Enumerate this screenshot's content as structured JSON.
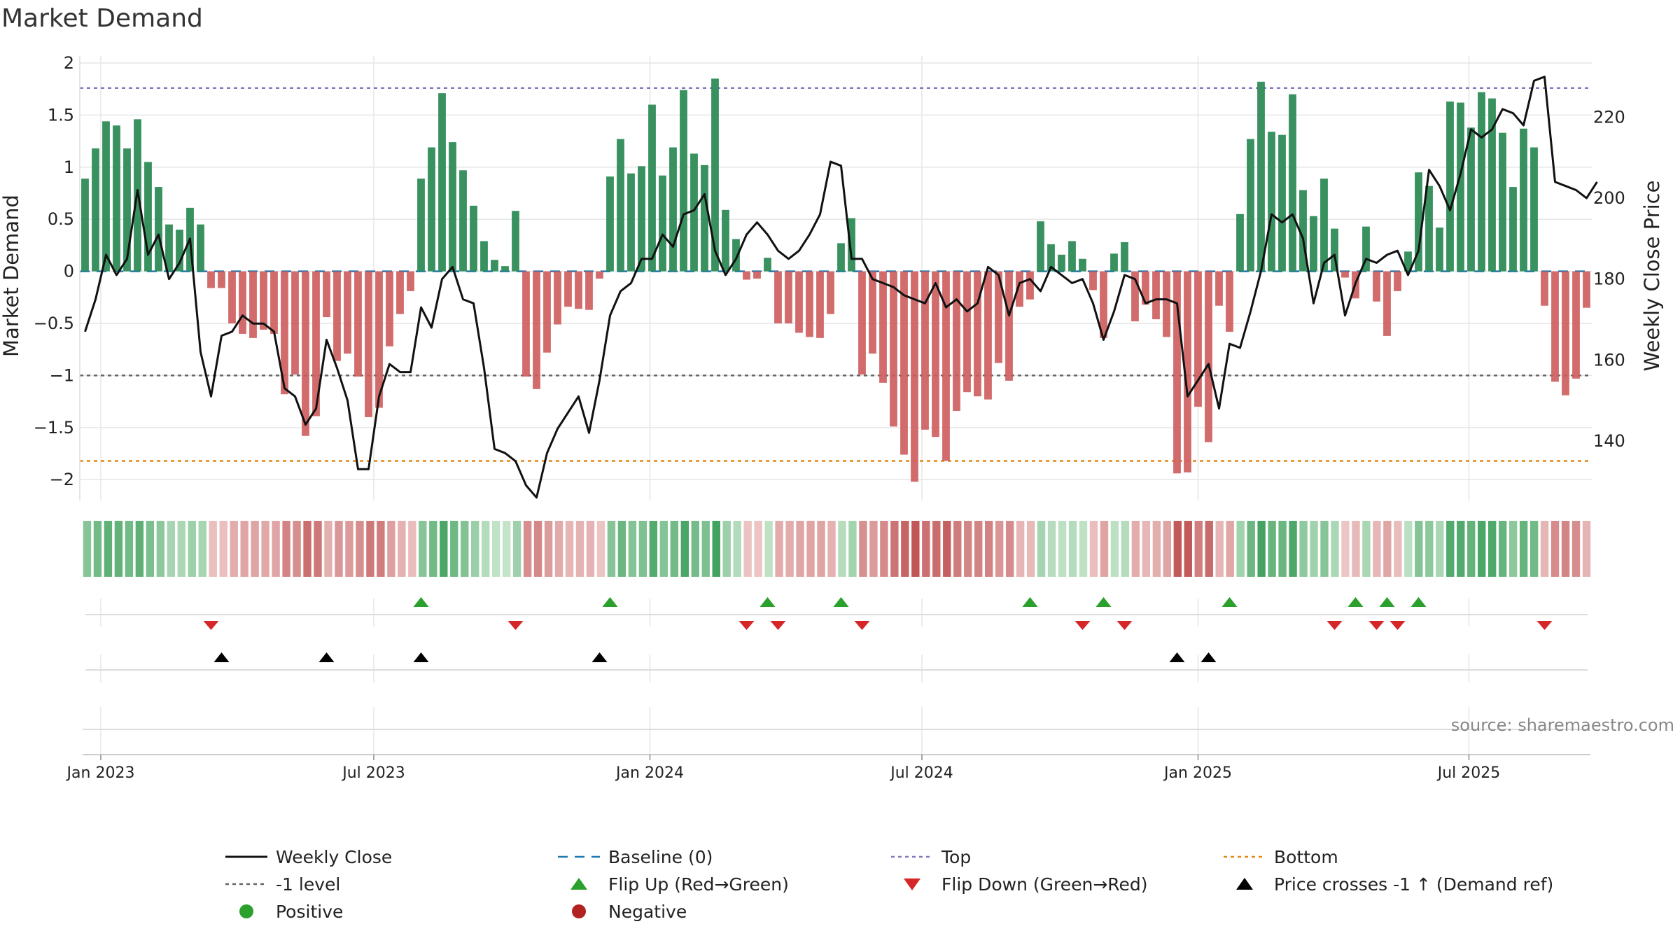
{
  "chart_data": {
    "type": "bar",
    "title": "Market Demand",
    "source": "source: sharemaestro.com",
    "x_ticks": [
      {
        "label": "Jan 2023",
        "week": 1.5
      },
      {
        "label": "Jul 2023",
        "week": 27.5
      },
      {
        "label": "Jan 2024",
        "week": 53.8
      },
      {
        "label": "Jul 2024",
        "week": 79.7
      },
      {
        "label": "Jan 2025",
        "week": 106
      },
      {
        "label": "Jul 2025",
        "week": 131.8
      }
    ],
    "demand_axis": {
      "label": "Market Demand",
      "ylim": [
        -2.2,
        2.0
      ],
      "ticks": [
        {
          "v": 2,
          "label": "2"
        },
        {
          "v": 1.5,
          "label": "1.5"
        },
        {
          "v": 1,
          "label": "1"
        },
        {
          "v": 0.5,
          "label": "0.5"
        },
        {
          "v": 0,
          "label": "0"
        },
        {
          "v": -0.5,
          "label": "−0.5"
        },
        {
          "v": -1,
          "label": "−1"
        },
        {
          "v": -1.5,
          "label": "−1.5"
        },
        {
          "v": -2,
          "label": "−2"
        }
      ]
    },
    "price_axis": {
      "label": "Weekly Close Price",
      "ylim": [
        125.27,
        233.4
      ],
      "ticks": [
        {
          "v": 220,
          "label": "220"
        },
        {
          "v": 200,
          "label": "200"
        },
        {
          "v": 180,
          "label": "180"
        },
        {
          "v": 160,
          "label": "160"
        },
        {
          "v": 140,
          "label": "140"
        }
      ]
    },
    "reference_lines": {
      "top": 1.76,
      "bottom": -1.82,
      "minus_one": -1,
      "baseline": 0
    },
    "demand": [
      0.89,
      1.18,
      1.44,
      1.4,
      1.18,
      1.46,
      1.05,
      0.81,
      0.45,
      0.4,
      0.61,
      0.45,
      -0.16,
      -0.16,
      -0.5,
      -0.6,
      -0.64,
      -0.56,
      -0.6,
      -1.18,
      -0.99,
      -1.58,
      -1.39,
      -0.44,
      -0.86,
      -0.79,
      -1.01,
      -1.4,
      -1.31,
      -0.72,
      -0.41,
      -0.19,
      0.89,
      1.19,
      1.71,
      1.24,
      0.97,
      0.63,
      0.29,
      0.11,
      0.05,
      0.58,
      -1.01,
      -1.13,
      -0.78,
      -0.51,
      -0.34,
      -0.36,
      -0.37,
      -0.07,
      0.91,
      1.27,
      0.94,
      1.01,
      1.6,
      0.92,
      1.19,
      1.74,
      1.13,
      1.02,
      1.85,
      0.59,
      0.31,
      -0.08,
      -0.07,
      0.13,
      -0.5,
      -0.5,
      -0.59,
      -0.63,
      -0.64,
      -0.41,
      0.27,
      0.51,
      -0.99,
      -0.79,
      -1.07,
      -1.49,
      -1.76,
      -2.02,
      -1.52,
      -1.59,
      -1.82,
      -1.34,
      -1.16,
      -1.2,
      -1.23,
      -0.88,
      -1.05,
      -0.34,
      -0.27,
      0.48,
      0.26,
      0.16,
      0.29,
      0.12,
      -0.18,
      -0.64,
      0.17,
      0.28,
      -0.48,
      -0.32,
      -0.46,
      -0.63,
      -1.94,
      -1.93,
      -1.3,
      -1.64,
      -0.33,
      -0.58,
      0.55,
      1.27,
      1.82,
      1.34,
      1.31,
      1.7,
      0.78,
      0.53,
      0.89,
      0.41,
      -0.06,
      -0.26,
      0.43,
      -0.29,
      -0.62,
      -0.19,
      0.19,
      0.95,
      0.82,
      0.42,
      1.63,
      1.62,
      1.38,
      1.72,
      1.66,
      1.33,
      0.81,
      1.37,
      1.19,
      -0.33,
      -1.06,
      -1.19,
      -1.03,
      -0.35
    ],
    "close": [
      167,
      175,
      186,
      181,
      185,
      202,
      186,
      191,
      180,
      184,
      190,
      162,
      151,
      166,
      167,
      171,
      169,
      169,
      167,
      153,
      151,
      144,
      148,
      165,
      158,
      150,
      133,
      133,
      151,
      159,
      157,
      157,
      173,
      168,
      180,
      183,
      175,
      174,
      158,
      138,
      137,
      135,
      129,
      126,
      137,
      143,
      147,
      151,
      142,
      155,
      171,
      177,
      179,
      185,
      185,
      191,
      188,
      196,
      197,
      201,
      187,
      181,
      185,
      191,
      194,
      191,
      187,
      185,
      187,
      191,
      196,
      209,
      208,
      185,
      185,
      180,
      179,
      178,
      176,
      175,
      174,
      179,
      173,
      175,
      172,
      174,
      183,
      181,
      171,
      179,
      180,
      177,
      183,
      181,
      179,
      180,
      174,
      165,
      172,
      181,
      180,
      174,
      175,
      175,
      174,
      151,
      155,
      159,
      148,
      164,
      163,
      172,
      182,
      196,
      194,
      196,
      190,
      174,
      184,
      186,
      171,
      179,
      185,
      184,
      186,
      187,
      181,
      187,
      207,
      203,
      197,
      206,
      217,
      215,
      217,
      222,
      221,
      218,
      229,
      230,
      204,
      203,
      202,
      200,
      204
    ],
    "flip_up_weeks": [
      32,
      50,
      65,
      72,
      90,
      97,
      109,
      121,
      124,
      127
    ],
    "flip_down_weeks": [
      12,
      41,
      63,
      66,
      74,
      95,
      99,
      119,
      123,
      125,
      139
    ],
    "price_cross_weeks": [
      13,
      23,
      32,
      49,
      104,
      107
    ],
    "legend": [
      {
        "key": "close",
        "label": "Weekly Close"
      },
      {
        "key": "baseline",
        "label": "Baseline (0)"
      },
      {
        "key": "top",
        "label": "Top"
      },
      {
        "key": "bottom",
        "label": "Bottom"
      },
      {
        "key": "minus_one",
        "label": "-1 level"
      },
      {
        "key": "flip_up",
        "label": "Flip Up (Red→Green)"
      },
      {
        "key": "flip_down",
        "label": "Flip Down (Green→Red)"
      },
      {
        "key": "price_cross",
        "label": "Price crosses -1 ↑ (Demand ref)"
      },
      {
        "key": "positive",
        "label": "Positive"
      },
      {
        "key": "negative",
        "label": "Negative"
      }
    ],
    "colors": {
      "positive_bar": "#2e8b57",
      "negative_bar": "#cd5c5c",
      "close_line": "#111111",
      "baseline": "#1f77b4",
      "top": "#8478c0",
      "bottom": "#e08a16",
      "minus_one": "#666666",
      "flip_up": "#2ca02c",
      "flip_down": "#d62728",
      "price_cross": "#000000",
      "positive_dot": "#2ca02c",
      "negative_dot": "#b22222",
      "grid": "#e6e6e6",
      "axis_text": "#222222"
    }
  }
}
